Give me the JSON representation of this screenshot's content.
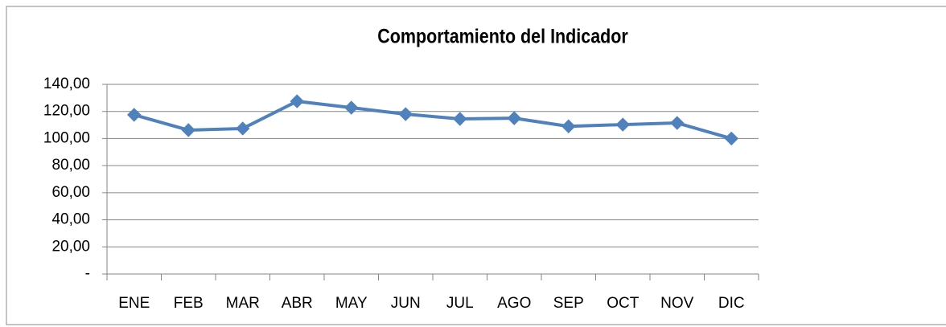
{
  "chart_data": {
    "type": "line",
    "title": "Comportamiento del Indicador",
    "categories": [
      "ENE",
      "FEB",
      "MAR",
      "ABR",
      "MAY",
      "JUN",
      "JUL",
      "AGO",
      "SEP",
      "OCT",
      "NOV",
      "DIC"
    ],
    "series": [
      {
        "color": "#4f81bd",
        "values": [
          117.5,
          106.2,
          107.4,
          127.5,
          122.8,
          118,
          114.5,
          115,
          109,
          110.3,
          111.5,
          100
        ]
      }
    ],
    "ylim": [
      0,
      140
    ],
    "yticks": [
      {
        "value": 0,
        "label": "-"
      },
      {
        "value": 20,
        "label": "20,00"
      },
      {
        "value": 40,
        "label": "40,00"
      },
      {
        "value": 60,
        "label": "60,00"
      },
      {
        "value": 80,
        "label": "80,00"
      },
      {
        "value": 100,
        "label": "100,00"
      },
      {
        "value": 120,
        "label": "120,00"
      },
      {
        "value": 140,
        "label": "140,00"
      }
    ],
    "grid": true
  }
}
